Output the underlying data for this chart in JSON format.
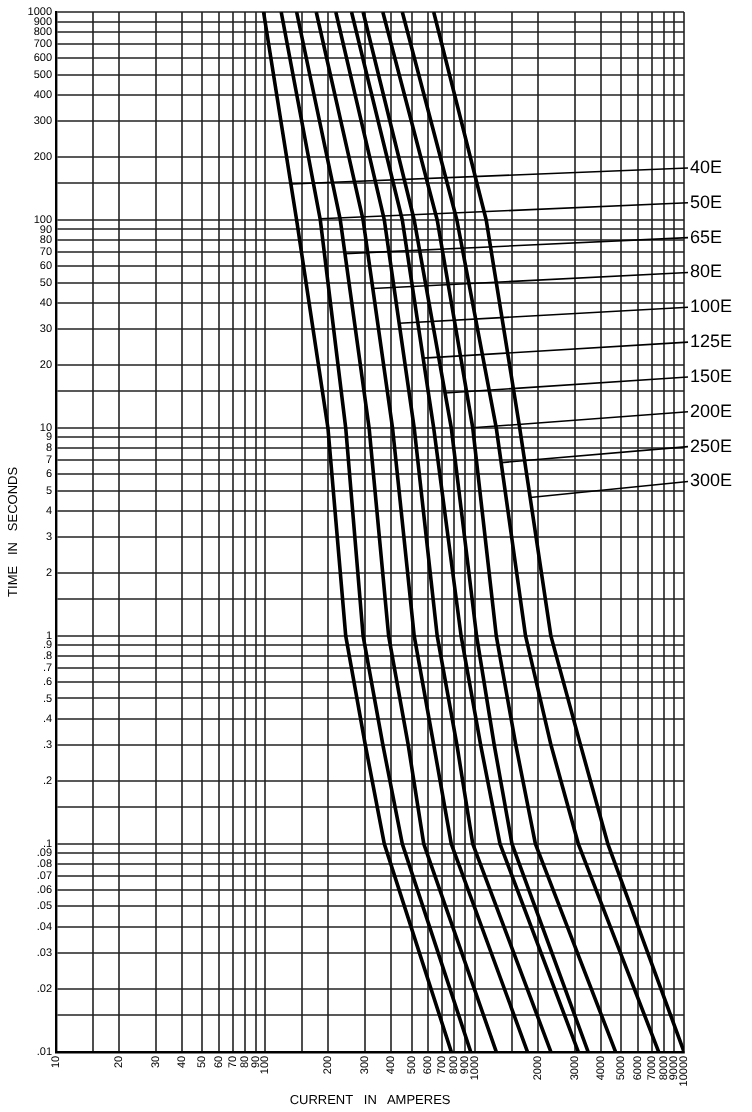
{
  "chart_data": {
    "type": "line",
    "xlabel": "CURRENT   IN   AMPERES",
    "ylabel": "TIME   IN   SECONDS",
    "log": "xy",
    "grid": true,
    "legend": false,
    "marker": "none",
    "line_style": "solid",
    "xlim": [
      10,
      10000
    ],
    "ylim": [
      0.01,
      1000
    ],
    "xticks": [
      10,
      {
        "value": 15,
        "label": null
      },
      20,
      30,
      40,
      50,
      60,
      70,
      80,
      90,
      100,
      {
        "value": 150,
        "label": null
      },
      200,
      300,
      400,
      500,
      600,
      700,
      800,
      900,
      1000,
      {
        "value": 1500,
        "label": null
      },
      2000,
      3000,
      4000,
      5000,
      6000,
      7000,
      8000,
      9000,
      10000
    ],
    "yticks": [
      {
        "value": 0.01,
        "label": ".01"
      },
      {
        "value": 0.015,
        "label": null
      },
      {
        "value": 0.02,
        "label": ".02"
      },
      {
        "value": 0.03,
        "label": ".03"
      },
      {
        "value": 0.04,
        "label": ".04"
      },
      {
        "value": 0.05,
        "label": ".05"
      },
      {
        "value": 0.06,
        "label": ".06"
      },
      {
        "value": 0.07,
        "label": ".07"
      },
      {
        "value": 0.08,
        "label": ".08"
      },
      {
        "value": 0.09,
        "label": ".09"
      },
      {
        "value": 0.1,
        "label": ".1"
      },
      {
        "value": 0.15,
        "label": null
      },
      {
        "value": 0.2,
        "label": ".2"
      },
      {
        "value": 0.3,
        "label": ".3"
      },
      {
        "value": 0.4,
        "label": ".4"
      },
      {
        "value": 0.5,
        "label": ".5"
      },
      {
        "value": 0.6,
        "label": ".6"
      },
      {
        "value": 0.7,
        "label": ".7"
      },
      {
        "value": 0.8,
        "label": ".8"
      },
      {
        "value": 0.9,
        "label": ".9"
      },
      1,
      {
        "value": 1.5,
        "label": null
      },
      2,
      3,
      4,
      5,
      6,
      7,
      8,
      9,
      10,
      {
        "value": 15,
        "label": null
      },
      20,
      30,
      40,
      50,
      60,
      70,
      80,
      90,
      100,
      {
        "value": 150,
        "label": null
      },
      200,
      300,
      400,
      500,
      600,
      700,
      800,
      900,
      1000
    ],
    "series": [
      {
        "name": "40E",
        "color": "#000000",
        "x": [
          98,
          141,
          199,
          242,
          300,
          370,
          773
        ],
        "values": [
          1000,
          100,
          10,
          1,
          0.3,
          0.1,
          0.01
        ]
      },
      {
        "name": "50E",
        "color": "#000000",
        "x": [
          119,
          183,
          242,
          293,
          364,
          451,
          957
        ],
        "values": [
          1000,
          100,
          10,
          1,
          0.3,
          0.1,
          0.01
        ]
      },
      {
        "name": "65E",
        "color": "#000000",
        "x": [
          141,
          228,
          313,
          388,
          481,
          571,
          1268
        ],
        "values": [
          1000,
          100,
          10,
          1,
          0.3,
          0.1,
          0.01
        ]
      },
      {
        "name": "80E",
        "color": "#000000",
        "x": [
          175,
          293,
          405,
          514,
          637,
          773,
          1787
        ],
        "values": [
          1000,
          100,
          10,
          1,
          0.3,
          0.1,
          0.01
        ]
      },
      {
        "name": "100E",
        "color": "#000000",
        "x": [
          217,
          370,
          514,
          662,
          822,
          979,
          2312
        ],
        "values": [
          1000,
          100,
          10,
          1,
          0.3,
          0.1,
          0.01
        ]
      },
      {
        "name": "125E",
        "color": "#000000",
        "x": [
          258,
          451,
          637,
          861,
          1067,
          1321,
          3126
        ],
        "values": [
          1000,
          100,
          10,
          1,
          0.3,
          0.1,
          0.01
        ]
      },
      {
        "name": "150E",
        "color": "#000000",
        "x": [
          293,
          514,
          773,
          1021,
          1239,
          1507,
          3483
        ],
        "values": [
          1000,
          100,
          10,
          1,
          0.3,
          0.1,
          0.01
        ]
      },
      {
        "name": "200E",
        "color": "#000000",
        "x": [
          364,
          662,
          979,
          1268,
          1571,
          1950,
          4710
        ],
        "values": [
          1000,
          100,
          10,
          1,
          0.3,
          0.1,
          0.01
        ]
      },
      {
        "name": "250E",
        "color": "#000000",
        "x": [
          451,
          822,
          1268,
          1750,
          2312,
          3126,
          7568
        ],
        "values": [
          1000,
          100,
          10,
          1,
          0.3,
          0.1,
          0.01
        ]
      },
      {
        "name": "300E",
        "color": "#000000",
        "x": [
          637,
          1135,
          1641,
          2312,
          3200,
          4326,
          10000
        ],
        "values": [
          1000,
          100,
          10,
          1,
          0.3,
          0.1,
          0.01
        ]
      }
    ]
  }
}
